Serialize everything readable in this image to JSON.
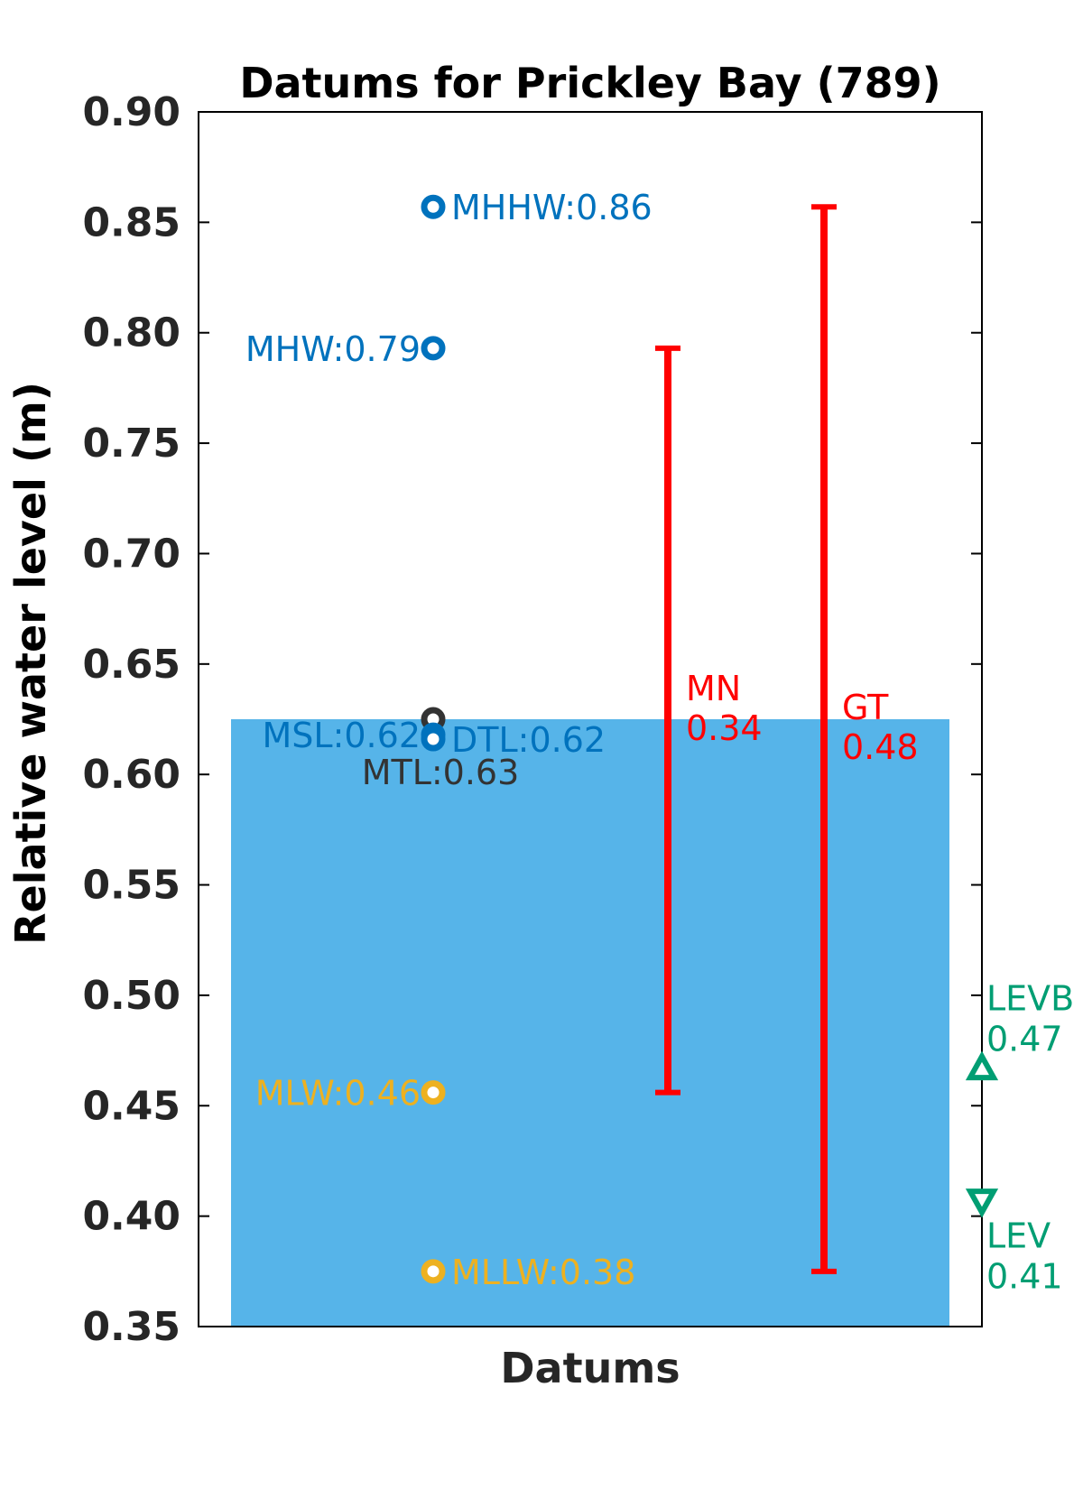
{
  "chart_data": {
    "type": "scatter",
    "title": "Datums for Prickley Bay (789)",
    "xlabel": "Datums",
    "ylabel": "Relative water level (m)",
    "ylim": [
      0.35,
      0.9
    ],
    "yticks": [
      0.35,
      0.4,
      0.45,
      0.5,
      0.55,
      0.6,
      0.65,
      0.7,
      0.75,
      0.8,
      0.85,
      0.9
    ],
    "ytick_labels": [
      "0.35",
      "0.40",
      "0.45",
      "0.50",
      "0.55",
      "0.60",
      "0.65",
      "0.70",
      "0.75",
      "0.80",
      "0.85",
      "0.90"
    ],
    "grid": false,
    "colors": {
      "blue": "#0072BD",
      "dark": "#333333",
      "orange": "#EDB120",
      "red": "#FF0000",
      "green": "#009E73",
      "bar": "#56B4E9"
    },
    "bar": {
      "value": 0.625
    },
    "datums": [
      {
        "name": "MHHW",
        "value": 0.857,
        "label": "MHHW:0.86",
        "color": "blue",
        "side": "right"
      },
      {
        "name": "MHW",
        "value": 0.793,
        "label": "MHW:0.79",
        "color": "blue",
        "side": "left"
      },
      {
        "name": "MTL",
        "value": 0.625,
        "label": "MTL:0.63",
        "color": "dark",
        "side": "below"
      },
      {
        "name": "MSL",
        "value": 0.618,
        "label": "MSL:0.62",
        "color": "blue",
        "side": "left"
      },
      {
        "name": "DTL",
        "value": 0.616,
        "label": "DTL:0.62",
        "color": "blue",
        "side": "right"
      },
      {
        "name": "MLW",
        "value": 0.456,
        "label": "MLW:0.46",
        "color": "orange",
        "side": "left"
      },
      {
        "name": "MLLW",
        "value": 0.375,
        "label": "MLLW:0.38",
        "color": "orange",
        "side": "right"
      }
    ],
    "ranges": [
      {
        "name": "MN",
        "low": 0.456,
        "high": 0.793,
        "label_name": "MN",
        "label_value": "0.34"
      },
      {
        "name": "GT",
        "low": 0.375,
        "high": 0.857,
        "label_name": "GT",
        "label_value": "0.48"
      }
    ],
    "extremes": [
      {
        "name": "LEVB",
        "value": 0.467,
        "label_name": "LEVB",
        "label_value": "0.47",
        "marker": "triangle-up"
      },
      {
        "name": "LEV",
        "value": 0.407,
        "label_name": "LEV",
        "label_value": "0.41",
        "marker": "triangle-down"
      }
    ]
  }
}
